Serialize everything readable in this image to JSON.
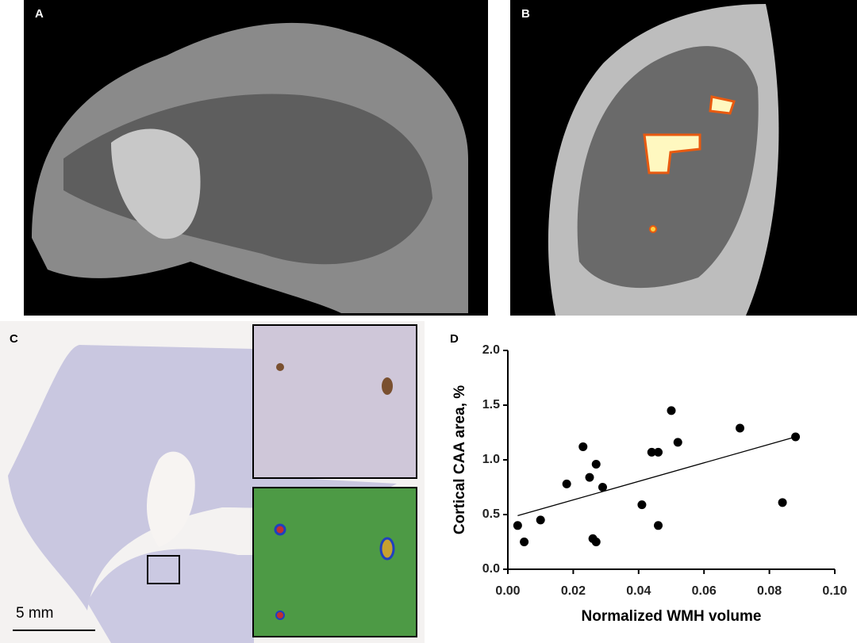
{
  "panels": {
    "a": "A",
    "b": "B",
    "c": "C",
    "d": "D"
  },
  "scale_bar": "5 mm",
  "chart_data": {
    "type": "scatter",
    "x_label": "Normalized WMH volume",
    "y_label": "Cortical CAA area, %",
    "x": [
      0.003,
      0.005,
      0.01,
      0.018,
      0.023,
      0.025,
      0.026,
      0.027,
      0.027,
      0.029,
      0.041,
      0.044,
      0.046,
      0.046,
      0.05,
      0.052,
      0.071,
      0.084,
      0.088
    ],
    "values": [
      0.4,
      0.25,
      0.45,
      0.78,
      1.12,
      0.84,
      0.28,
      0.25,
      0.96,
      0.75,
      0.59,
      1.07,
      1.07,
      0.4,
      1.45,
      1.16,
      1.29,
      0.61,
      1.21
    ],
    "color": "#000000",
    "trendline": {
      "x": [
        0.003,
        0.088
      ],
      "values": [
        0.49,
        1.21
      ]
    },
    "xlim": [
      0,
      0.1
    ],
    "ylim": [
      0,
      2
    ],
    "xticks": [
      {
        "value": 0,
        "label": "0.00"
      },
      {
        "value": 0.02,
        "label": "0.02"
      },
      {
        "value": 0.04,
        "label": "0.04"
      },
      {
        "value": 0.06,
        "label": "0.06"
      },
      {
        "value": 0.08,
        "label": "0.08"
      },
      {
        "value": 0.1,
        "label": "0.10"
      }
    ],
    "yticks": [
      {
        "value": 0,
        "label": "0.0"
      },
      {
        "value": 0.5,
        "label": "0.5"
      },
      {
        "value": 1,
        "label": "1.0"
      },
      {
        "value": 1.5,
        "label": "1.5"
      },
      {
        "value": 2,
        "label": "2.0"
      }
    ]
  }
}
